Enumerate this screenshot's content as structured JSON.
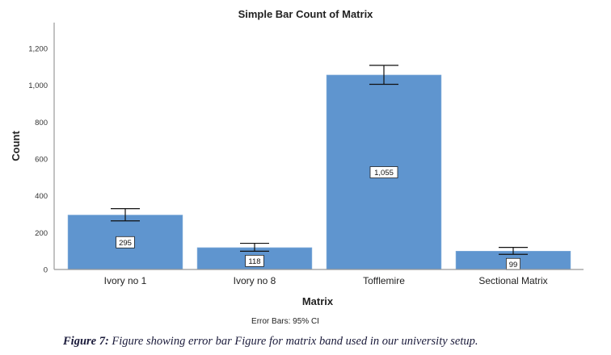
{
  "chart_data": {
    "type": "bar",
    "title": "Simple Bar Count of Matrix",
    "xlabel": "Matrix",
    "ylabel": "Count",
    "categories": [
      "Ivory no 1",
      "Ivory no 8",
      "Tofflemire",
      "Sectional Matrix"
    ],
    "values": [
      295,
      118,
      1055,
      99
    ],
    "data_labels": [
      "295",
      "118",
      "1,055",
      "99"
    ],
    "error_bars": [
      [
        264,
        330
      ],
      [
        99,
        142
      ],
      [
        1005,
        1108
      ],
      [
        82,
        120
      ]
    ],
    "ylim": [
      0,
      1340
    ],
    "yticks": [
      0,
      200,
      400,
      600,
      800,
      1000,
      1200
    ],
    "ytick_labels": [
      "0",
      "200",
      "400",
      "600",
      "800",
      "1,000",
      "1,200"
    ],
    "grid": false,
    "bar_color": "#5f95cf",
    "footnote": "Error Bars: 95% CI"
  },
  "caption": {
    "label": "Figure 7:",
    "text": " Figure showing error bar Figure for matrix band used in our university setup."
  }
}
